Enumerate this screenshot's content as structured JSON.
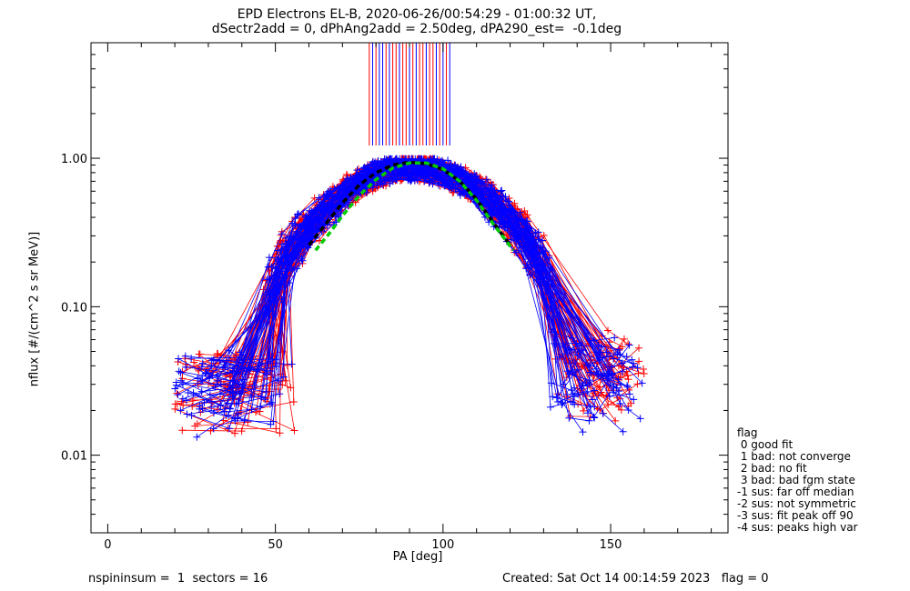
{
  "chart_data": {
    "type": "scatter",
    "title": "EPD Electrons EL-B, 2020-06-26/00:54:29 - 01:00:32 UT,",
    "subtitle": "dSectr2add = 0, dPhAng2add = 2.50deg, dPA290_est=  -0.1deg",
    "xlabel": "PA [deg]",
    "ylabel": "nflux [#/(cm^2 s sr MeV)]",
    "xlim": [
      -5,
      185
    ],
    "ylim": [
      0.003,
      6.0
    ],
    "yscale": "log",
    "x_ticks": [
      0,
      50,
      100,
      150
    ],
    "x_tick_labels": [
      "0",
      "50",
      "100",
      "150"
    ],
    "y_ticks": [
      0.01,
      0.1,
      1.0
    ],
    "y_tick_labels": [
      "0.01",
      "0.10",
      "1.00"
    ],
    "colors": {
      "red": "#ff0000",
      "blue": "#0000ff",
      "green": "#00cc00",
      "black": "#000000"
    },
    "model_fits": [
      {
        "style": "black-dashed",
        "x": [
          60,
          65,
          70,
          75,
          80,
          85,
          90,
          95,
          100,
          105,
          110,
          115,
          120
        ],
        "y": [
          0.26,
          0.36,
          0.5,
          0.66,
          0.8,
          0.9,
          0.94,
          0.92,
          0.84,
          0.7,
          0.53,
          0.37,
          0.26
        ]
      },
      {
        "style": "green-dashed",
        "x": [
          62,
          66,
          70,
          75,
          80,
          85,
          90,
          95,
          100,
          105,
          110,
          115,
          121
        ],
        "y": [
          0.24,
          0.31,
          0.41,
          0.56,
          0.72,
          0.86,
          0.93,
          0.93,
          0.85,
          0.7,
          0.52,
          0.36,
          0.24
        ]
      }
    ],
    "spikes": {
      "red_x": [
        78,
        80,
        83,
        85,
        86,
        88,
        89,
        91,
        93,
        94,
        96,
        97,
        99,
        101
      ],
      "blue_x": [
        79,
        81,
        82,
        84,
        87,
        90,
        92,
        95,
        98,
        100,
        102
      ],
      "y_from": 1.22
    },
    "annotations": {
      "footer_left": "nspininsum =  1  sectors = 16",
      "footer_right": "Created: Sat Oct 14 00:14:59 2023   flag = 0"
    },
    "legend": {
      "placement": "bottom-right outside",
      "entries": [
        "flag",
        " 0 good fit",
        " 1 bad: not converge",
        " 2 bad: no fit",
        " 3 bad: bad fgm state",
        "-1 sus: far off median",
        "-2 sus: not symmetric",
        "-3 sus: fit peak off 90",
        "-4 sus: peaks high var"
      ]
    }
  }
}
